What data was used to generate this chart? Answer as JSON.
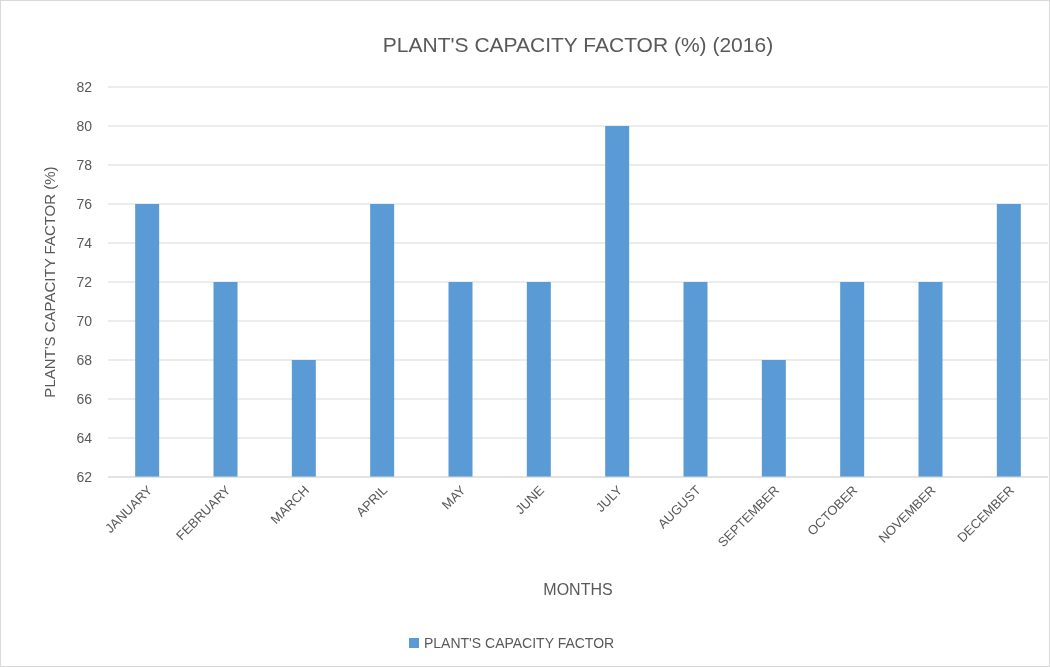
{
  "chart_data": {
    "type": "bar",
    "title": "PLANT'S CAPACITY FACTOR (%) (2016)",
    "xlabel": "MONTHS",
    "ylabel": "PLANT'S CAPACITY FACTOR (%)",
    "categories": [
      "JANUARY",
      "FEBRUARY",
      "MARCH",
      "APRIL",
      "MAY",
      "JUNE",
      "JULY",
      "AUGUST",
      "SEPTEMBER",
      "OCTOBER",
      "NOVEMBER",
      "DECEMBER"
    ],
    "series": [
      {
        "name": "PLANT'S CAPACITY FACTOR",
        "color": "#5b9bd5",
        "values": [
          76,
          72,
          68,
          76,
          72,
          72,
          80,
          72,
          68,
          72,
          72,
          76
        ]
      }
    ],
    "ylim": [
      62,
      82
    ],
    "yticks": [
      62,
      64,
      66,
      68,
      70,
      72,
      74,
      76,
      78,
      80,
      82
    ],
    "grid": "y",
    "legend": "bottom"
  }
}
